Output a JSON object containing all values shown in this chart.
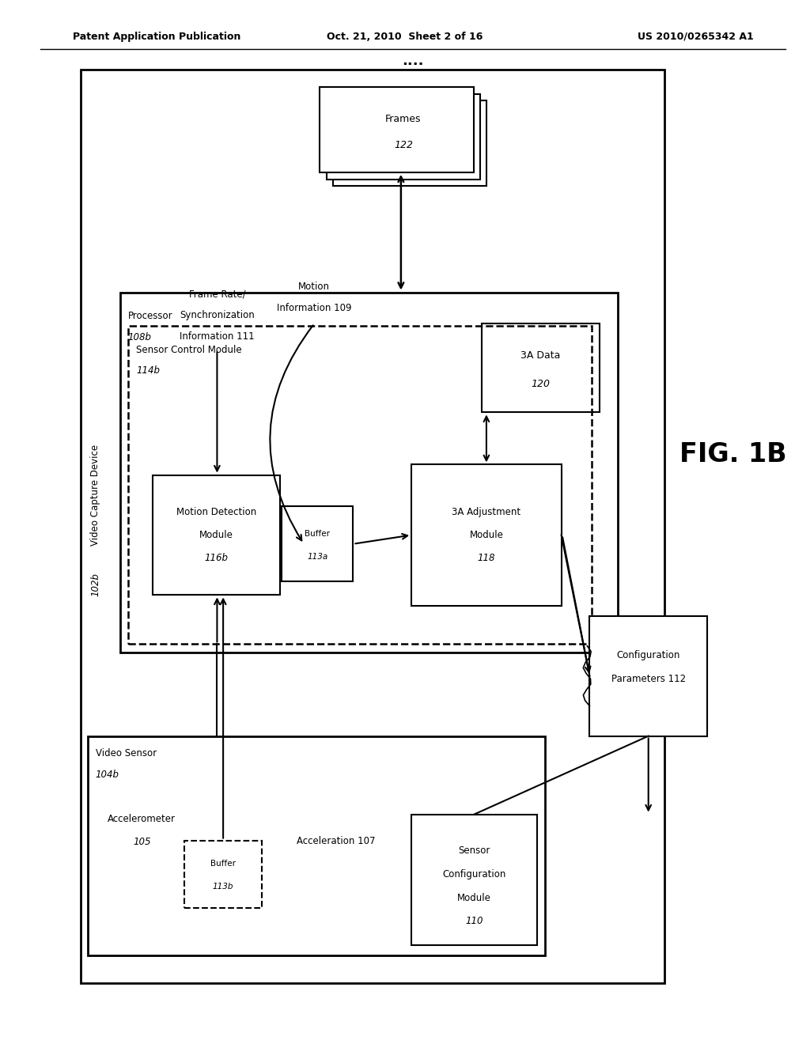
{
  "fig_label": "FIG. 1B",
  "header_left": "Patent Application Publication",
  "header_mid": "Oct. 21, 2010  Sheet 2 of 16",
  "header_right": "US 2010/0265342 A1",
  "bg_color": "#ffffff"
}
